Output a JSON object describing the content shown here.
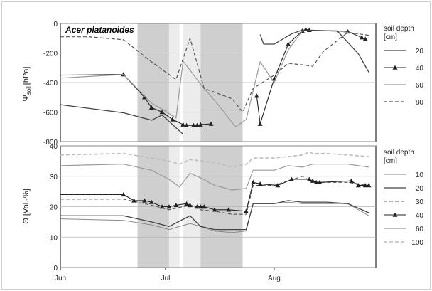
{
  "chart_data": [
    {
      "type": "line",
      "title": "Acer platanoides",
      "ylabel": "Ψ",
      "ylabel_sub": "soil",
      "ylabel_unit": "[hPa]",
      "ylim": [
        -800,
        0
      ],
      "yticks": [
        0,
        -200,
        -400,
        -600,
        -800
      ],
      "ytick_labels": [
        "0",
        "-200",
        "-400",
        "-600",
        "-800"
      ],
      "grid": "horizontal",
      "legend_title": [
        "soil depth",
        "[cm]"
      ],
      "legend_position": "right",
      "series": [
        {
          "name": "20",
          "color": "#444444",
          "style": "solid",
          "marker": "none",
          "width": 1.3,
          "segments": [
            [
              [
                -2,
                -550
              ],
              [
                18,
                -605
              ],
              [
                26,
                -655
              ],
              [
                29,
                -620
              ],
              [
                35,
                -750
              ]
            ],
            [
              [
                57,
                -75
              ],
              [
                58,
                -140
              ],
              [
                61,
                -140
              ],
              [
                66,
                -70
              ],
              [
                69,
                -45
              ],
              [
                79,
                -50
              ],
              [
                85,
                -205
              ],
              [
                88,
                -330
              ]
            ]
          ]
        },
        {
          "name": "40",
          "color": "#222222",
          "style": "solid",
          "marker": "triangle",
          "width": 1.1,
          "segments": [
            [
              [
                -2,
                -350
              ],
              [
                18,
                -345
              ],
              [
                24,
                -500
              ],
              [
                26,
                -570
              ],
              [
                29,
                -600
              ],
              [
                32,
                -650
              ],
              [
                35,
                -685
              ],
              [
                36,
                -690
              ],
              [
                38,
                -690
              ],
              [
                39,
                -690
              ],
              [
                40,
                -685
              ],
              [
                43,
                -680
              ]
            ],
            [
              [
                56,
                -490
              ],
              [
                57,
                -680
              ],
              [
                61,
                -375
              ],
              [
                65,
                -140
              ],
              [
                69,
                -50
              ],
              [
                70,
                -40
              ],
              [
                71,
                -45
              ],
              [
                82,
                -55
              ],
              [
                86,
                -95
              ],
              [
                87,
                -105
              ]
            ]
          ]
        },
        {
          "name": "60",
          "color": "#9a9a9a",
          "style": "solid",
          "marker": "none",
          "width": 1.2,
          "segments": [
            [
              [
                -2,
                -370
              ],
              [
                18,
                -345
              ],
              [
                26,
                -540
              ],
              [
                29,
                -580
              ],
              [
                33,
                -640
              ],
              [
                35,
                -255
              ],
              [
                40,
                -410
              ],
              [
                45,
                -550
              ],
              [
                50,
                -700
              ],
              [
                53,
                -650
              ],
              [
                57,
                -260
              ],
              [
                61,
                -400
              ],
              [
                65,
                -180
              ],
              [
                69,
                -50
              ],
              [
                73,
                -50
              ],
              [
                79,
                -50
              ],
              [
                85,
                -70
              ]
            ]
          ]
        },
        {
          "name": "80",
          "color": "#555555",
          "style": "dashed",
          "marker": "none",
          "width": 1.2,
          "segments": [
            [
              [
                -2,
                -90
              ],
              [
                8,
                -90
              ],
              [
                18,
                -110
              ],
              [
                26,
                -260
              ],
              [
                33,
                -380
              ],
              [
                37,
                -100
              ],
              [
                41,
                -440
              ],
              [
                49,
                -510
              ],
              [
                52,
                -600
              ],
              [
                55,
                -440
              ],
              [
                61,
                -350
              ],
              [
                65,
                -270
              ],
              [
                69,
                -280
              ],
              [
                72,
                -290
              ],
              [
                75,
                -190
              ],
              [
                82,
                -60
              ],
              [
                88,
                -80
              ]
            ]
          ]
        }
      ]
    },
    {
      "type": "line",
      "ylabel": "Θ [Vol.-%]",
      "ylim": [
        0,
        40
      ],
      "yticks": [
        0,
        10,
        20,
        30,
        40
      ],
      "ytick_labels": [
        "0",
        "10",
        "20",
        "30",
        "40"
      ],
      "x_range_days": [
        0,
        90
      ],
      "x_ticks": [
        0,
        30,
        61
      ],
      "x_tick_labels": [
        "Jun",
        "Jul",
        "Aug"
      ],
      "grid": "horizontal",
      "legend_title": [
        "soil depth",
        "[cm]"
      ],
      "legend_position": "right",
      "series": [
        {
          "name": "10",
          "color": "#8a8a8a",
          "style": "solid",
          "marker": "none",
          "width": 1.0,
          "points": [
            [
              0,
              16
            ],
            [
              18,
              15.5
            ],
            [
              26,
              14
            ],
            [
              31,
              12.5
            ],
            [
              37,
              14.5
            ],
            [
              40,
              13.5
            ],
            [
              44,
              12
            ],
            [
              49,
              11.5
            ],
            [
              53,
              12
            ],
            [
              55,
              21
            ],
            [
              61,
              21
            ],
            [
              65,
              21.5
            ],
            [
              69,
              21
            ],
            [
              72,
              21
            ],
            [
              76,
              21
            ],
            [
              82,
              21
            ],
            [
              88,
              17
            ]
          ]
        },
        {
          "name": "20",
          "color": "#444444",
          "style": "solid",
          "marker": "none",
          "width": 1.3,
          "points": [
            [
              0,
              17
            ],
            [
              18,
              17
            ],
            [
              26,
              15
            ],
            [
              31,
              13.5
            ],
            [
              37,
              17
            ],
            [
              40,
              13.5
            ],
            [
              44,
              12.5
            ],
            [
              49,
              12.5
            ],
            [
              53,
              12.5
            ],
            [
              55,
              21
            ],
            [
              61,
              21
            ],
            [
              65,
              22
            ],
            [
              69,
              21.5
            ],
            [
              72,
              21.5
            ],
            [
              76,
              21.5
            ],
            [
              82,
              21
            ],
            [
              88,
              18
            ]
          ]
        },
        {
          "name": "30",
          "color": "#555555",
          "style": "dashed",
          "marker": "none",
          "width": 1.1,
          "points": [
            [
              0,
              22.5
            ],
            [
              18,
              22.5
            ],
            [
              26,
              20.5
            ],
            [
              31,
              19
            ],
            [
              37,
              20.5
            ],
            [
              40,
              19
            ],
            [
              44,
              18.5
            ],
            [
              49,
              17.5
            ],
            [
              53,
              17.5
            ],
            [
              55,
              27
            ],
            [
              61,
              27
            ],
            [
              65,
              28.5
            ],
            [
              69,
              30
            ],
            [
              72,
              28
            ],
            [
              76,
              28
            ],
            [
              82,
              28
            ],
            [
              88,
              27
            ]
          ]
        },
        {
          "name": "40",
          "color": "#222222",
          "style": "solid",
          "marker": "triangle",
          "width": 1.1,
          "points": [
            [
              0,
              24
            ],
            [
              18,
              24
            ],
            [
              21,
              22
            ],
            [
              24,
              22
            ],
            [
              26,
              21.5
            ],
            [
              29,
              20
            ],
            [
              31,
              20
            ],
            [
              33,
              20.5
            ],
            [
              36,
              21
            ],
            [
              37,
              20.5
            ],
            [
              39,
              20
            ],
            [
              40,
              20
            ],
            [
              41,
              20
            ],
            [
              44,
              19
            ],
            [
              48,
              19
            ],
            [
              53,
              18.5
            ],
            [
              55,
              28
            ],
            [
              57,
              27.5
            ],
            [
              62,
              27
            ],
            [
              66,
              29
            ],
            [
              71,
              29
            ],
            [
              72,
              28.5
            ],
            [
              73,
              28
            ],
            [
              74,
              28
            ],
            [
              83,
              28.5
            ],
            [
              85,
              27
            ],
            [
              87,
              27
            ],
            [
              88,
              27
            ]
          ]
        },
        {
          "name": "60",
          "color": "#999999",
          "style": "solid",
          "marker": "none",
          "width": 1.2,
          "points": [
            [
              0,
              33.5
            ],
            [
              18,
              34
            ],
            [
              26,
              32
            ],
            [
              31,
              29
            ],
            [
              34,
              26.5
            ],
            [
              37,
              31
            ],
            [
              40,
              29.5
            ],
            [
              44,
              27
            ],
            [
              49,
              25.5
            ],
            [
              53,
              26
            ],
            [
              55,
              32
            ],
            [
              61,
              32
            ],
            [
              65,
              33.5
            ],
            [
              69,
              33
            ],
            [
              72,
              34
            ],
            [
              76,
              34
            ],
            [
              82,
              34
            ],
            [
              88,
              33
            ]
          ]
        },
        {
          "name": "100",
          "color": "#bdbdbd",
          "style": "dashed",
          "marker": "none",
          "width": 1.6,
          "points": [
            [
              0,
              37
            ],
            [
              18,
              37.5
            ],
            [
              26,
              36
            ],
            [
              31,
              35
            ],
            [
              34,
              34
            ],
            [
              37,
              35.5
            ],
            [
              44,
              34.5
            ],
            [
              49,
              33
            ],
            [
              53,
              34
            ],
            [
              55,
              36
            ],
            [
              61,
              36
            ],
            [
              65,
              36.5
            ],
            [
              69,
              37
            ],
            [
              71,
              38
            ],
            [
              72,
              37.5
            ],
            [
              76,
              37.5
            ],
            [
              82,
              37
            ],
            [
              88,
              36.5
            ]
          ]
        }
      ]
    }
  ],
  "shaded_periods_days": [
    {
      "start": 22,
      "end": 31,
      "shade": "#cfcfcf"
    },
    {
      "start": 31,
      "end": 34,
      "shade": "#ececec"
    },
    {
      "start": 35,
      "end": 40,
      "shade": "#ececec"
    },
    {
      "start": 40,
      "end": 52,
      "shade": "#cfcfcf"
    }
  ]
}
